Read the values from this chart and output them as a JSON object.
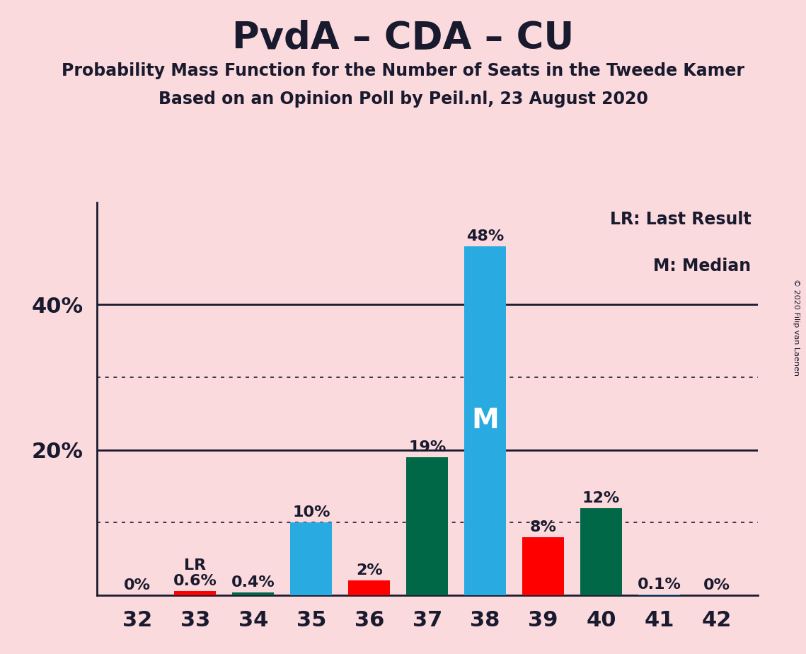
{
  "title": "PvdA – CDA – CU",
  "subtitle1": "Probability Mass Function for the Number of Seats in the Tweede Kamer",
  "subtitle2": "Based on an Opinion Poll by Peil.nl, 23 August 2020",
  "copyright": "© 2020 Filip van Laenen",
  "seats": [
    32,
    33,
    34,
    35,
    36,
    37,
    38,
    39,
    40,
    41,
    42
  ],
  "values": [
    0.0,
    0.6,
    0.4,
    10.0,
    2.0,
    19.0,
    48.0,
    8.0,
    12.0,
    0.1,
    0.0
  ],
  "bar_colors": [
    "#29ABE2",
    "#FF0000",
    "#006747",
    "#29ABE2",
    "#FF0000",
    "#006747",
    "#29ABE2",
    "#FF0000",
    "#006747",
    "#29ABE2",
    "#29ABE2"
  ],
  "labels": [
    "0%",
    "0.6%",
    "0.4%",
    "10%",
    "2%",
    "19%",
    "48%",
    "8%",
    "12%",
    "0.1%",
    "0%"
  ],
  "median_seat": 38,
  "lr_seat": 33,
  "background_color": "#FADADD",
  "ylim": [
    0,
    54
  ],
  "solid_gridlines": [
    20.0,
    40.0
  ],
  "dotted_gridlines": [
    10.0,
    30.0
  ],
  "ytick_positions": [
    20.0,
    40.0
  ],
  "ytick_labels": [
    "20%",
    "40%"
  ],
  "legend_lr_text": "LR: Last Result",
  "legend_m_text": "M: Median",
  "lr_label": "LR",
  "m_label": "M",
  "text_color": "#1a1a2e",
  "label_fontsize": 16,
  "tick_fontsize": 22,
  "title_fontsize": 38,
  "subtitle_fontsize": 17
}
